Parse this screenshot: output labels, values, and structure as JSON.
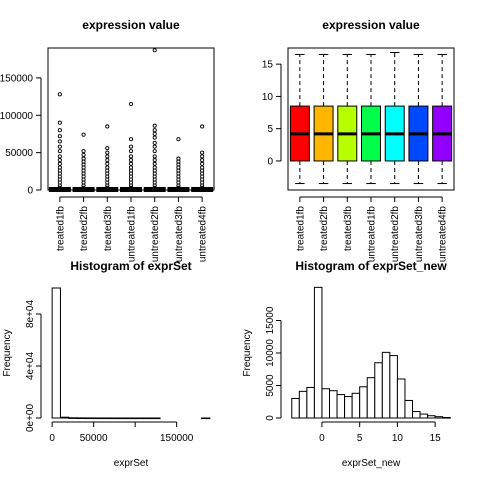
{
  "chart_data": [
    {
      "type": "boxplot",
      "title": "expression value",
      "xlabel": "",
      "ylabel": "",
      "categories": [
        "treated1fb",
        "treated2fb",
        "treated3fb",
        "untreated1fb",
        "untreated2fb",
        "untreated3fb",
        "untreated4fb"
      ],
      "ylim": [
        0,
        190000
      ],
      "yticks": [
        0,
        50000,
        100000,
        150000
      ],
      "ytick_labels": [
        "0",
        "50000",
        "100000",
        "150000"
      ],
      "box_color": "#ffffff",
      "boxes": [
        {
          "q1": 0,
          "median": 15,
          "q3": 700,
          "lower": 0,
          "upper": 1800,
          "outliers": [
            3000,
            6000,
            10000,
            14000,
            18000,
            22000,
            26000,
            30000,
            35000,
            40000,
            45000,
            52000,
            58000,
            65000,
            72000,
            80000,
            90000,
            128000
          ]
        },
        {
          "q1": 0,
          "median": 15,
          "q3": 700,
          "lower": 0,
          "upper": 1800,
          "outliers": [
            3000,
            6000,
            10000,
            14000,
            18000,
            22000,
            26000,
            30000,
            34000,
            38000,
            42000,
            47000,
            52000,
            74000
          ]
        },
        {
          "q1": 0,
          "median": 15,
          "q3": 700,
          "lower": 0,
          "upper": 1800,
          "outliers": [
            3000,
            6000,
            10000,
            14000,
            18000,
            22000,
            26000,
            30000,
            35000,
            40000,
            45000,
            50000,
            56000,
            85000
          ]
        },
        {
          "q1": 0,
          "median": 15,
          "q3": 700,
          "lower": 0,
          "upper": 1800,
          "outliers": [
            3000,
            6000,
            10000,
            14000,
            18000,
            22000,
            26000,
            30000,
            35000,
            40000,
            45000,
            52000,
            58000,
            68000,
            115000
          ]
        },
        {
          "q1": 0,
          "median": 15,
          "q3": 700,
          "lower": 0,
          "upper": 1800,
          "outliers": [
            3000,
            6000,
            10000,
            14000,
            18000,
            22000,
            26000,
            30000,
            35000,
            40000,
            45000,
            52000,
            58000,
            63000,
            70000,
            75000,
            80000,
            86000,
            187000
          ]
        },
        {
          "q1": 0,
          "median": 15,
          "q3": 700,
          "lower": 0,
          "upper": 1800,
          "outliers": [
            3000,
            6000,
            10000,
            14000,
            18000,
            22000,
            26000,
            30000,
            34000,
            38000,
            42000,
            68000
          ]
        },
        {
          "q1": 0,
          "median": 15,
          "q3": 700,
          "lower": 0,
          "upper": 1800,
          "outliers": [
            3000,
            6000,
            10000,
            14000,
            18000,
            22000,
            26000,
            30000,
            35000,
            40000,
            45000,
            50000,
            85000
          ]
        }
      ]
    },
    {
      "type": "boxplot",
      "title": "expression value",
      "xlabel": "",
      "ylabel": "",
      "categories": [
        "treated1fb",
        "treated2fb",
        "treated3fb",
        "untreated1fb",
        "untreated2fb",
        "untreated3fb",
        "untreated4fb"
      ],
      "ylim": [
        -4.5,
        17.5
      ],
      "yticks": [
        0,
        5,
        10,
        15
      ],
      "ytick_labels": [
        "0",
        "5",
        "10",
        "15"
      ],
      "colors": [
        "#FF0000",
        "#FFB600",
        "#B6FF00",
        "#00FF49",
        "#00FFFF",
        "#0049FF",
        "#9200FF"
      ],
      "boxes": [
        {
          "q1": 0,
          "median": 4.2,
          "q3": 8.5,
          "lower": -3.5,
          "upper": 16.5
        },
        {
          "q1": 0,
          "median": 4.2,
          "q3": 8.5,
          "lower": -3.5,
          "upper": 16.5
        },
        {
          "q1": 0,
          "median": 4.2,
          "q3": 8.5,
          "lower": -3.5,
          "upper": 16.5
        },
        {
          "q1": 0,
          "median": 4.2,
          "q3": 8.5,
          "lower": -3.5,
          "upper": 16.5
        },
        {
          "q1": 0,
          "median": 4.2,
          "q3": 8.5,
          "lower": -3.5,
          "upper": 16.8
        },
        {
          "q1": 0,
          "median": 4.2,
          "q3": 8.5,
          "lower": -3.5,
          "upper": 16.5
        },
        {
          "q1": 0,
          "median": 4.2,
          "q3": 8.5,
          "lower": -3.5,
          "upper": 16.5
        }
      ]
    },
    {
      "type": "histogram",
      "title": "Histogram of exprSet",
      "xlabel": "exprSet",
      "ylabel": "Frequency",
      "xlim": [
        -5000,
        195000
      ],
      "ylim": [
        0,
        100000
      ],
      "xticks": [
        0,
        50000,
        100000,
        150000
      ],
      "xtick_labels": [
        "0",
        "50000",
        "150000"
      ],
      "xtick_label_at": [
        0,
        50000,
        150000
      ],
      "yticks": [
        0,
        40000,
        80000
      ],
      "ytick_labels": [
        "0e+00",
        "4e+04",
        "8e+04"
      ],
      "bins": [
        {
          "start": 0,
          "end": 10000,
          "count": 100000
        },
        {
          "start": 10000,
          "end": 20000,
          "count": 600
        },
        {
          "start": 20000,
          "end": 30000,
          "count": 150
        },
        {
          "start": 30000,
          "end": 40000,
          "count": 80
        },
        {
          "start": 40000,
          "end": 50000,
          "count": 50
        },
        {
          "start": 50000,
          "end": 60000,
          "count": 30
        },
        {
          "start": 60000,
          "end": 70000,
          "count": 20
        },
        {
          "start": 70000,
          "end": 80000,
          "count": 10
        },
        {
          "start": 80000,
          "end": 90000,
          "count": 8
        },
        {
          "start": 90000,
          "end": 100000,
          "count": 4
        },
        {
          "start": 100000,
          "end": 110000,
          "count": 2
        },
        {
          "start": 110000,
          "end": 120000,
          "count": 2
        },
        {
          "start": 120000,
          "end": 130000,
          "count": 1
        },
        {
          "start": 130000,
          "end": 140000,
          "count": 0
        },
        {
          "start": 140000,
          "end": 150000,
          "count": 0
        },
        {
          "start": 150000,
          "end": 160000,
          "count": 0
        },
        {
          "start": 160000,
          "end": 170000,
          "count": 0
        },
        {
          "start": 170000,
          "end": 180000,
          "count": 0
        },
        {
          "start": 180000,
          "end": 190000,
          "count": 1
        }
      ]
    },
    {
      "type": "histogram",
      "title": "Histogram of exprSet_new",
      "xlabel": "exprSet_new",
      "ylabel": "Frequency",
      "xlim": [
        -4.5,
        17.5
      ],
      "ylim": [
        0,
        20000
      ],
      "xticks": [
        0,
        5,
        10,
        15
      ],
      "xtick_labels": [
        "0",
        "5",
        "10",
        "15"
      ],
      "yticks": [
        0,
        5000,
        10000,
        15000
      ],
      "ytick_labels": [
        "0",
        "5000",
        "10000",
        "15000"
      ],
      "bins": [
        {
          "start": -4,
          "end": -3,
          "count": 3000
        },
        {
          "start": -3,
          "end": -2,
          "count": 4100
        },
        {
          "start": -2,
          "end": -1,
          "count": 4700
        },
        {
          "start": -1,
          "end": 0,
          "count": 20100
        },
        {
          "start": 0,
          "end": 1,
          "count": 4500
        },
        {
          "start": 1,
          "end": 2,
          "count": 4200
        },
        {
          "start": 2,
          "end": 3,
          "count": 3600
        },
        {
          "start": 3,
          "end": 4,
          "count": 3300
        },
        {
          "start": 4,
          "end": 5,
          "count": 3800
        },
        {
          "start": 5,
          "end": 6,
          "count": 4800
        },
        {
          "start": 6,
          "end": 7,
          "count": 6200
        },
        {
          "start": 7,
          "end": 8,
          "count": 8500
        },
        {
          "start": 8,
          "end": 9,
          "count": 10100
        },
        {
          "start": 9,
          "end": 10,
          "count": 9600
        },
        {
          "start": 10,
          "end": 11,
          "count": 6000
        },
        {
          "start": 11,
          "end": 12,
          "count": 2700
        },
        {
          "start": 12,
          "end": 13,
          "count": 1000
        },
        {
          "start": 13,
          "end": 14,
          "count": 600
        },
        {
          "start": 14,
          "end": 15,
          "count": 350
        },
        {
          "start": 15,
          "end": 16,
          "count": 200
        },
        {
          "start": 16,
          "end": 17,
          "count": 80
        }
      ]
    }
  ]
}
